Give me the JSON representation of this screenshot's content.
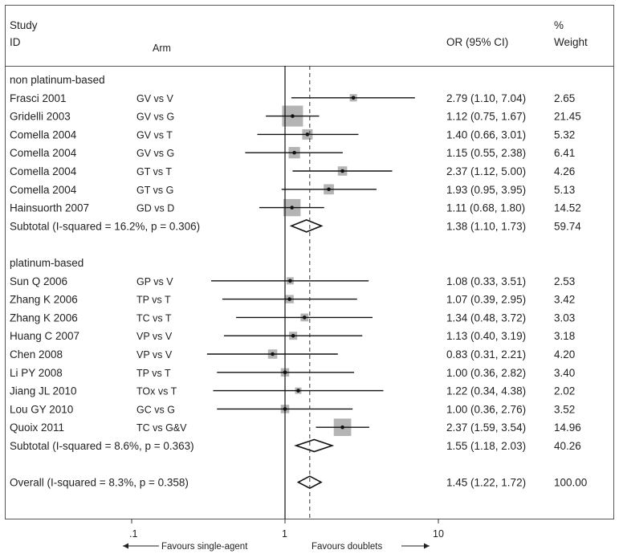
{
  "chart_data": {
    "type": "forest",
    "header": {
      "study_line1": "Study",
      "study_line2": "ID",
      "arm": "Arm",
      "or_ci": "OR (95% CI)",
      "weight_line1": "%",
      "weight_line2": "Weight"
    },
    "x_scale": "log",
    "xlim": [
      0.1,
      10
    ],
    "x_ticks": [
      {
        "value": 0.1,
        "label": ".1"
      },
      {
        "value": 1,
        "label": "1"
      },
      {
        "value": 10,
        "label": "10"
      }
    ],
    "null_line": 1,
    "overall_line": 1.45,
    "favours_left": "Favours single-agent",
    "favours_right": "Favours doublets",
    "groups": [
      {
        "label": "non platinum-based",
        "studies": [
          {
            "study": "Frasci 2001",
            "arm": "GV vs V",
            "or": 2.79,
            "lo": 1.1,
            "hi": 7.04,
            "ci_text": "2.79 (1.10, 7.04)",
            "weight": "2.65"
          },
          {
            "study": "Gridelli 2003",
            "arm": "GV vs G",
            "or": 1.12,
            "lo": 0.75,
            "hi": 1.67,
            "ci_text": "1.12 (0.75, 1.67)",
            "weight": "21.45"
          },
          {
            "study": "Comella 2004",
            "arm": "GV vs T",
            "or": 1.4,
            "lo": 0.66,
            "hi": 3.01,
            "ci_text": "1.40 (0.66, 3.01)",
            "weight": "5.32"
          },
          {
            "study": "Comella 2004",
            "arm": "GV vs G",
            "or": 1.15,
            "lo": 0.55,
            "hi": 2.38,
            "ci_text": "1.15 (0.55, 2.38)",
            "weight": "6.41"
          },
          {
            "study": "Comella 2004",
            "arm": "GT vs T",
            "or": 2.37,
            "lo": 1.12,
            "hi": 5.0,
            "ci_text": "2.37 (1.12, 5.00)",
            "weight": "4.26"
          },
          {
            "study": "Comella 2004",
            "arm": "GT vs G",
            "or": 1.93,
            "lo": 0.95,
            "hi": 3.95,
            "ci_text": "1.93 (0.95, 3.95)",
            "weight": "5.13"
          },
          {
            "study": "Hainsuorth 2007",
            "arm": "GD vs D",
            "or": 1.11,
            "lo": 0.68,
            "hi": 1.8,
            "ci_text": "1.11 (0.68, 1.80)",
            "weight": "14.52"
          }
        ],
        "subtotal": {
          "label": "Subtotal  (I-squared = 16.2%, p = 0.306)",
          "or": 1.38,
          "lo": 1.1,
          "hi": 1.73,
          "ci_text": "1.38 (1.10, 1.73)",
          "weight": "59.74"
        }
      },
      {
        "label": "platinum-based",
        "studies": [
          {
            "study": "Sun Q 2006",
            "arm": "GP vs V",
            "or": 1.08,
            "lo": 0.33,
            "hi": 3.51,
            "ci_text": "1.08 (0.33, 3.51)",
            "weight": "2.53"
          },
          {
            "study": "Zhang K 2006",
            "arm": "TP vs T",
            "or": 1.07,
            "lo": 0.39,
            "hi": 2.95,
            "ci_text": "1.07 (0.39, 2.95)",
            "weight": "3.42"
          },
          {
            "study": "Zhang K 2006",
            "arm": "TC vs T",
            "or": 1.34,
            "lo": 0.48,
            "hi": 3.72,
            "ci_text": "1.34 (0.48, 3.72)",
            "weight": "3.03"
          },
          {
            "study": "Huang C 2007",
            "arm": "VP vs V",
            "or": 1.13,
            "lo": 0.4,
            "hi": 3.19,
            "ci_text": "1.13 (0.40, 3.19)",
            "weight": "3.18"
          },
          {
            "study": "Chen 2008",
            "arm": "VP vs V",
            "or": 0.83,
            "lo": 0.31,
            "hi": 2.21,
            "ci_text": "0.83 (0.31, 2.21)",
            "weight": "4.20"
          },
          {
            "study": "Li PY 2008",
            "arm": "TP vs T",
            "or": 1.0,
            "lo": 0.36,
            "hi": 2.82,
            "ci_text": "1.00 (0.36, 2.82)",
            "weight": "3.40"
          },
          {
            "study": "Jiang JL 2010",
            "arm": "TOx vs T",
            "or": 1.22,
            "lo": 0.34,
            "hi": 4.38,
            "ci_text": "1.22 (0.34, 4.38)",
            "weight": "2.02"
          },
          {
            "study": "Lou GY 2010",
            "arm": "GC vs G",
            "or": 1.0,
            "lo": 0.36,
            "hi": 2.76,
            "ci_text": "1.00 (0.36, 2.76)",
            "weight": "3.52"
          },
          {
            "study": "Quoix 2011",
            "arm": "TC vs G&V",
            "or": 2.37,
            "lo": 1.59,
            "hi": 3.54,
            "ci_text": "2.37 (1.59, 3.54)",
            "weight": "14.96"
          }
        ],
        "subtotal": {
          "label": "Subtotal  (I-squared = 8.6%, p = 0.363)",
          "or": 1.55,
          "lo": 1.18,
          "hi": 2.03,
          "ci_text": "1.55 (1.18, 2.03)",
          "weight": "40.26"
        }
      }
    ],
    "overall": {
      "label": "Overall  (I-squared = 8.3%, p = 0.358)",
      "or": 1.45,
      "lo": 1.22,
      "hi": 1.72,
      "ci_text": "1.45 (1.22, 1.72)",
      "weight": "100.00"
    },
    "colors": {
      "box": "#b4b4b4",
      "line": "#111111",
      "frame": "#555555"
    }
  }
}
